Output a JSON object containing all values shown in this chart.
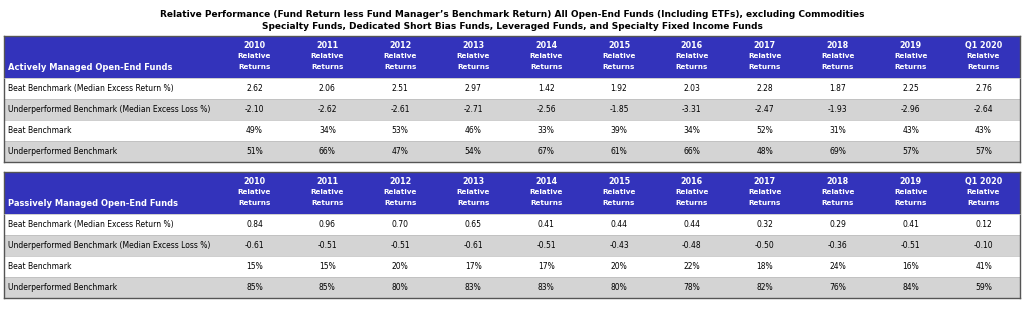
{
  "title_line1": "Relative Performance (Fund Return less Fund Manager’s Benchmark Return) All Open-End Funds (Including ETFs), excluding Commodities",
  "title_line2": "Specialty Funds, Dedicated Short Bias Funds, Leveraged Funds, and Specialty Fixed Income Funds",
  "years": [
    "2010",
    "2011",
    "2012",
    "2013",
    "2014",
    "2015",
    "2016",
    "2017",
    "2018",
    "2019",
    "Q1 2020"
  ],
  "header_bg": "#3333bb",
  "header_text": "#ffffff",
  "title_color": "#000000",
  "active_header": "Actively Managed Open-End Funds",
  "passive_header": "Passively Managed Open-End Funds",
  "row_colors": [
    "#ffffff",
    "#d4d4d4",
    "#ffffff",
    "#d4d4d4"
  ],
  "active_rows": {
    "Beat Benchmark (Median Excess Return %)": [
      "2.62",
      "2.06",
      "2.51",
      "2.97",
      "1.42",
      "1.92",
      "2.03",
      "2.28",
      "1.87",
      "2.25",
      "2.76"
    ],
    "Underperformed Benchmark (Median Excess Loss %)": [
      "-2.10",
      "-2.62",
      "-2.61",
      "-2.71",
      "-2.56",
      "-1.85",
      "-3.31",
      "-2.47",
      "-1.93",
      "-2.96",
      "-2.64"
    ],
    "Beat Benchmark": [
      "49%",
      "34%",
      "53%",
      "46%",
      "33%",
      "39%",
      "34%",
      "52%",
      "31%",
      "43%",
      "43%"
    ],
    "Underperformed Benchmark": [
      "51%",
      "66%",
      "47%",
      "54%",
      "67%",
      "61%",
      "66%",
      "48%",
      "69%",
      "57%",
      "57%"
    ]
  },
  "passive_rows": {
    "Beat Benchmark (Median Excess Return %)": [
      "0.84",
      "0.96",
      "0.70",
      "0.65",
      "0.41",
      "0.44",
      "0.44",
      "0.32",
      "0.29",
      "0.41",
      "0.12"
    ],
    "Underperformed Benchmark (Median Excess Loss %)": [
      "-0.61",
      "-0.51",
      "-0.51",
      "-0.61",
      "-0.51",
      "-0.43",
      "-0.48",
      "-0.50",
      "-0.36",
      "-0.51",
      "-0.10"
    ],
    "Beat Benchmark": [
      "15%",
      "15%",
      "20%",
      "17%",
      "17%",
      "20%",
      "22%",
      "18%",
      "24%",
      "16%",
      "41%"
    ],
    "Underperformed Benchmark": [
      "85%",
      "85%",
      "80%",
      "83%",
      "83%",
      "80%",
      "78%",
      "82%",
      "76%",
      "84%",
      "59%"
    ]
  },
  "fig_width": 10.24,
  "fig_height": 3.22,
  "dpi": 100
}
